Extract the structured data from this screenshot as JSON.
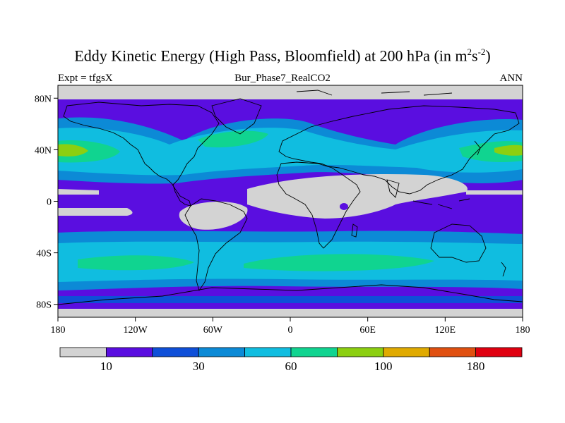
{
  "title": {
    "text": "Eddy Kinetic Energy (High Pass, Bloomfield) at 200 hPa (in m",
    "sup1": "2",
    "mid": "s",
    "sup2": "-2",
    "end": ")"
  },
  "left_label": "Expt = tfgsX",
  "center_label": "Bur_Phase7_RealCO2",
  "right_label": "ANN",
  "map": {
    "projection": "cylindrical-equidistant",
    "lon_range": [
      -180,
      180
    ],
    "lat_range": [
      -90,
      90
    ],
    "lat_ticks": [
      {
        "value": 80,
        "label": "80N"
      },
      {
        "value": 40,
        "label": "40N"
      },
      {
        "value": 0,
        "label": "0"
      },
      {
        "value": -40,
        "label": "40S"
      },
      {
        "value": -80,
        "label": "80S"
      }
    ],
    "lon_ticks": [
      {
        "value": -180,
        "label": "180"
      },
      {
        "value": -120,
        "label": "120W"
      },
      {
        "value": -60,
        "label": "60W"
      },
      {
        "value": 0,
        "label": "0"
      },
      {
        "value": 60,
        "label": "60E"
      },
      {
        "value": 120,
        "label": "120E"
      },
      {
        "value": 180,
        "label": "180"
      }
    ]
  },
  "colorbar": {
    "colors": [
      "#d3d3d3",
      "#5a0ee0",
      "#0f4fd8",
      "#0c8ad6",
      "#10bde0",
      "#10d490",
      "#8ccf10",
      "#e0aa00",
      "#e05010",
      "#e00010"
    ],
    "labels": [
      {
        "boundary": 1,
        "text": "10"
      },
      {
        "boundary": 3,
        "text": "30"
      },
      {
        "boundary": 5,
        "text": "60"
      },
      {
        "boundary": 7,
        "text": "100"
      },
      {
        "boundary": 9,
        "text": "180"
      }
    ]
  },
  "colors": {
    "land_outline": "#000000",
    "frame": "#000000"
  }
}
